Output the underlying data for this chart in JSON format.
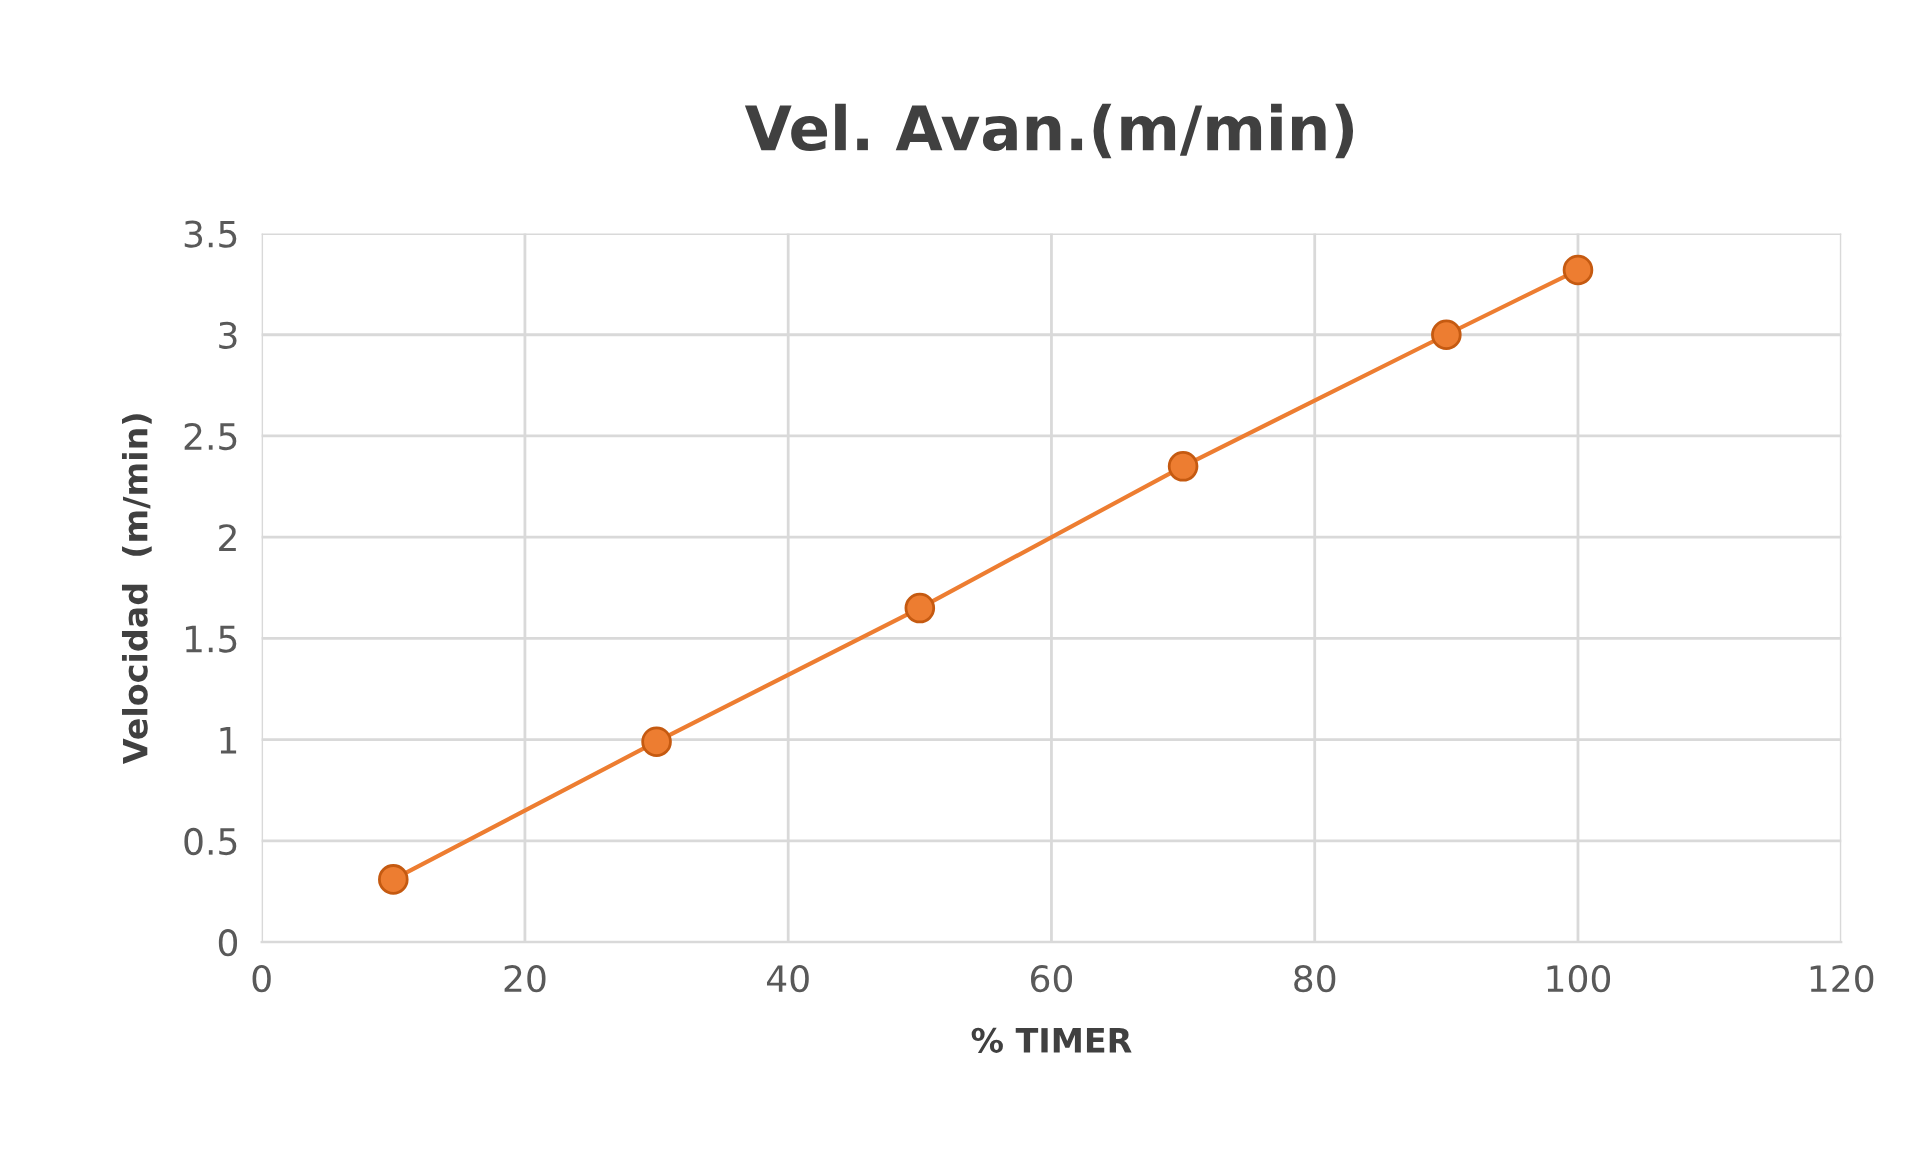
{
  "chart_data": {
    "type": "line",
    "title": "Vel. Avan.(m/min)",
    "xlabel": "% TIMER",
    "ylabel": "Velocidad  (m/min)",
    "x": [
      10,
      30,
      50,
      70,
      90,
      100
    ],
    "series": [
      {
        "color": "#ed7d31",
        "values": [
          0.31,
          0.99,
          1.65,
          2.35,
          3.0,
          3.32
        ]
      }
    ],
    "xlim": [
      0,
      120
    ],
    "xticks": [
      0,
      20,
      40,
      60,
      80,
      100,
      120
    ],
    "ylim": [
      0,
      3.5
    ],
    "yticks": [
      0,
      {
        "value": 0.5,
        "label": "0.5"
      },
      1,
      {
        "value": 1.5,
        "label": "1.5"
      },
      2,
      {
        "value": 2.5,
        "label": "2.5"
      },
      3,
      {
        "value": 3.5,
        "label": "3.5"
      }
    ],
    "grid": true,
    "marker": "circle",
    "line_style": "solid",
    "legend": false
  }
}
